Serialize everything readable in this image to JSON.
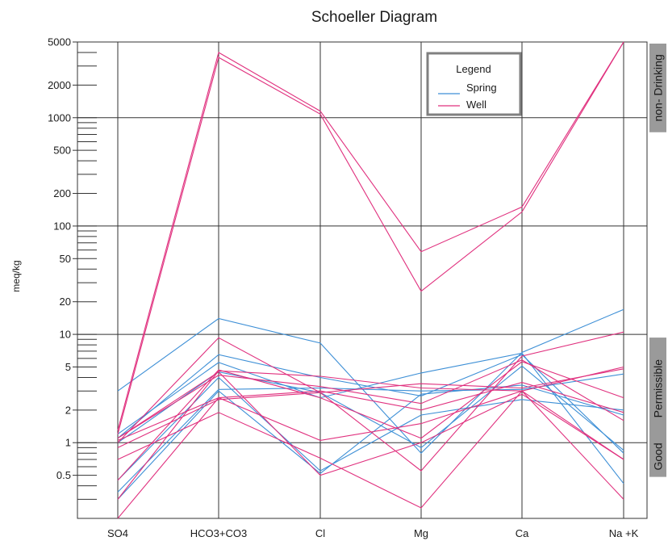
{
  "chart_data": {
    "type": "line",
    "title": "Schoeller Diagram",
    "ylabel": "meq/kg",
    "yscale": "log",
    "ylim": [
      0.2,
      5000
    ],
    "categories": [
      "SO4",
      "HCO3+CO3",
      "Cl",
      "Mg",
      "Ca",
      "Na +K"
    ],
    "y_ticks": [
      {
        "value": 5000,
        "label": "5000"
      },
      {
        "value": 2000,
        "label": "2000"
      },
      {
        "value": 1000,
        "label": "1000"
      },
      {
        "value": 500,
        "label": "500"
      },
      {
        "value": 200,
        "label": "200"
      },
      {
        "value": 100,
        "label": "100"
      },
      {
        "value": 50,
        "label": "50"
      },
      {
        "value": 20,
        "label": "20"
      },
      {
        "value": 10,
        "label": "10"
      },
      {
        "value": 5,
        "label": "5"
      },
      {
        "value": 2,
        "label": "2"
      },
      {
        "value": 1,
        "label": "1"
      },
      {
        "value": 0.5,
        "label": "0.5"
      }
    ],
    "bands": [
      {
        "label": "non- Drinking",
        "from": 1000,
        "to": 5000
      },
      {
        "label": "Permissible",
        "from": 1,
        "to": 10
      },
      {
        "label": "Good",
        "from": 0.2,
        "to": 1
      }
    ],
    "legend": {
      "title": "Legend",
      "position": "top-right",
      "entries": [
        {
          "name": "Spring",
          "color": "#3d8fd6"
        },
        {
          "name": "Well",
          "color": "#e0307e"
        }
      ]
    },
    "series": [
      {
        "name": "Spring",
        "values": [
          3.0,
          14.0,
          8.3,
          0.8,
          6.8,
          17.0
        ]
      },
      {
        "name": "Spring",
        "values": [
          1.1,
          6.5,
          4.0,
          2.7,
          6.5,
          0.8
        ]
      },
      {
        "name": "Spring",
        "values": [
          1.2,
          5.5,
          2.6,
          4.4,
          6.7,
          0.42
        ]
      },
      {
        "name": "Spring",
        "values": [
          0.35,
          3.1,
          3.2,
          3.0,
          3.1,
          4.3
        ]
      },
      {
        "name": "Spring",
        "values": [
          0.3,
          3.0,
          0.52,
          2.8,
          3.4,
          1.8
        ]
      },
      {
        "name": "Spring",
        "values": [
          0.45,
          4.0,
          0.55,
          1.8,
          2.5,
          2.0
        ]
      },
      {
        "name": "Spring",
        "values": [
          1.0,
          4.5,
          2.9,
          0.9,
          5.1,
          0.85
        ]
      },
      {
        "name": "Well",
        "values": [
          1.3,
          4000,
          1150,
          58,
          150,
          5000
        ]
      },
      {
        "name": "Well",
        "values": [
          1.2,
          3600,
          1080,
          25,
          135,
          5000
        ]
      },
      {
        "name": "Well",
        "values": [
          1.0,
          9.3,
          2.9,
          0.55,
          6.3,
          10.5
        ]
      },
      {
        "name": "Well",
        "values": [
          0.45,
          4.7,
          2.6,
          1.1,
          5.6,
          2.6
        ]
      },
      {
        "name": "Well",
        "values": [
          0.3,
          4.6,
          4.1,
          3.2,
          3.0,
          5.0
        ]
      },
      {
        "name": "Well",
        "values": [
          0.2,
          2.6,
          1.05,
          1.5,
          3.0,
          0.7
        ]
      },
      {
        "name": "Well",
        "values": [
          0.7,
          1.9,
          0.72,
          0.25,
          3.0,
          0.3
        ]
      },
      {
        "name": "Well",
        "values": [
          1.05,
          2.6,
          3.0,
          2.0,
          3.6,
          1.9
        ]
      },
      {
        "name": "Well",
        "values": [
          1.1,
          4.5,
          0.5,
          1.0,
          2.8,
          0.7
        ]
      },
      {
        "name": "Well",
        "values": [
          0.9,
          2.5,
          2.9,
          3.5,
          3.2,
          4.8
        ]
      },
      {
        "name": "Well",
        "values": [
          1.1,
          4.2,
          3.3,
          2.3,
          5.8,
          1.6
        ]
      }
    ]
  }
}
